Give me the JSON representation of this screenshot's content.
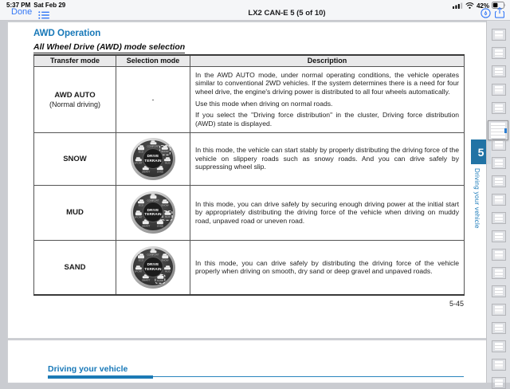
{
  "status_bar": {
    "time": "5:37 PM",
    "date": "Sat Feb 29",
    "battery_percent": "42%"
  },
  "nav_bar": {
    "done_label": "Done",
    "title": "LX2 CAN-E 5 (5 of 10)"
  },
  "manual_page": {
    "section_heading": "AWD Operation",
    "subsection_heading": "All Wheel Drive (AWD) mode selection",
    "page_number": "5-45",
    "table": {
      "headers": [
        "Transfer mode",
        "Selection mode",
        "Description"
      ],
      "rows": [
        {
          "mode": "AWD AUTO",
          "mode_sub": "(Normal driving)",
          "selection": "-",
          "dial_selected": null,
          "description": [
            "In the AWD AUTO mode, under normal operating conditions, the vehicle operates similar to conventional 2WD vehicles. If the system determines there is a need for four wheel drive, the engine's driving power is distributed to all four wheels automatically.",
            "Use this mode when driving on normal roads.",
            "If you select the \"Driving force distribution\" in the cluster, Driving force distribution (AWD) state is displayed."
          ]
        },
        {
          "mode": "SNOW",
          "mode_sub": "",
          "selection": "",
          "dial_selected": "SNOW",
          "description": [
            "In this mode, the vehicle can start stably by properly distributing the driving force of the vehicle on slippery roads such as snowy roads. And you can drive safely by suppressing wheel slip."
          ]
        },
        {
          "mode": "MUD",
          "mode_sub": "",
          "selection": "",
          "dial_selected": "MUD",
          "description": [
            "In this mode, you can drive safely by securing enough driving power at the initial start by appropriately distributing the driving force of the vehicle when driving on muddy road, unpaved road or uneven road."
          ]
        },
        {
          "mode": "SAND",
          "mode_sub": "",
          "selection": "",
          "dial_selected": "SAND",
          "description": [
            "In this mode, you can drive safely by distributing the driving force of the vehicle properly when driving on smooth, dry sand or deep gravel and unpaved roads."
          ]
        }
      ]
    },
    "dial": {
      "center_top": "DRIVE",
      "center_bottom": "TERRAIN",
      "positions": [
        "COMFORT",
        "SNOW",
        "MUD",
        "SAND",
        "SMART",
        "SPORT",
        "ECO"
      ]
    }
  },
  "chapter_tab": {
    "number": "5",
    "label": "Driving your vehicle"
  },
  "next_page": {
    "heading": "Driving your vehicle"
  },
  "colors": {
    "heading_blue": "#1778b8",
    "chapter_tab_blue": "#2173a5",
    "ios_blue": "#3478f6",
    "next_page_rule_blue": "#1c7ab5"
  }
}
